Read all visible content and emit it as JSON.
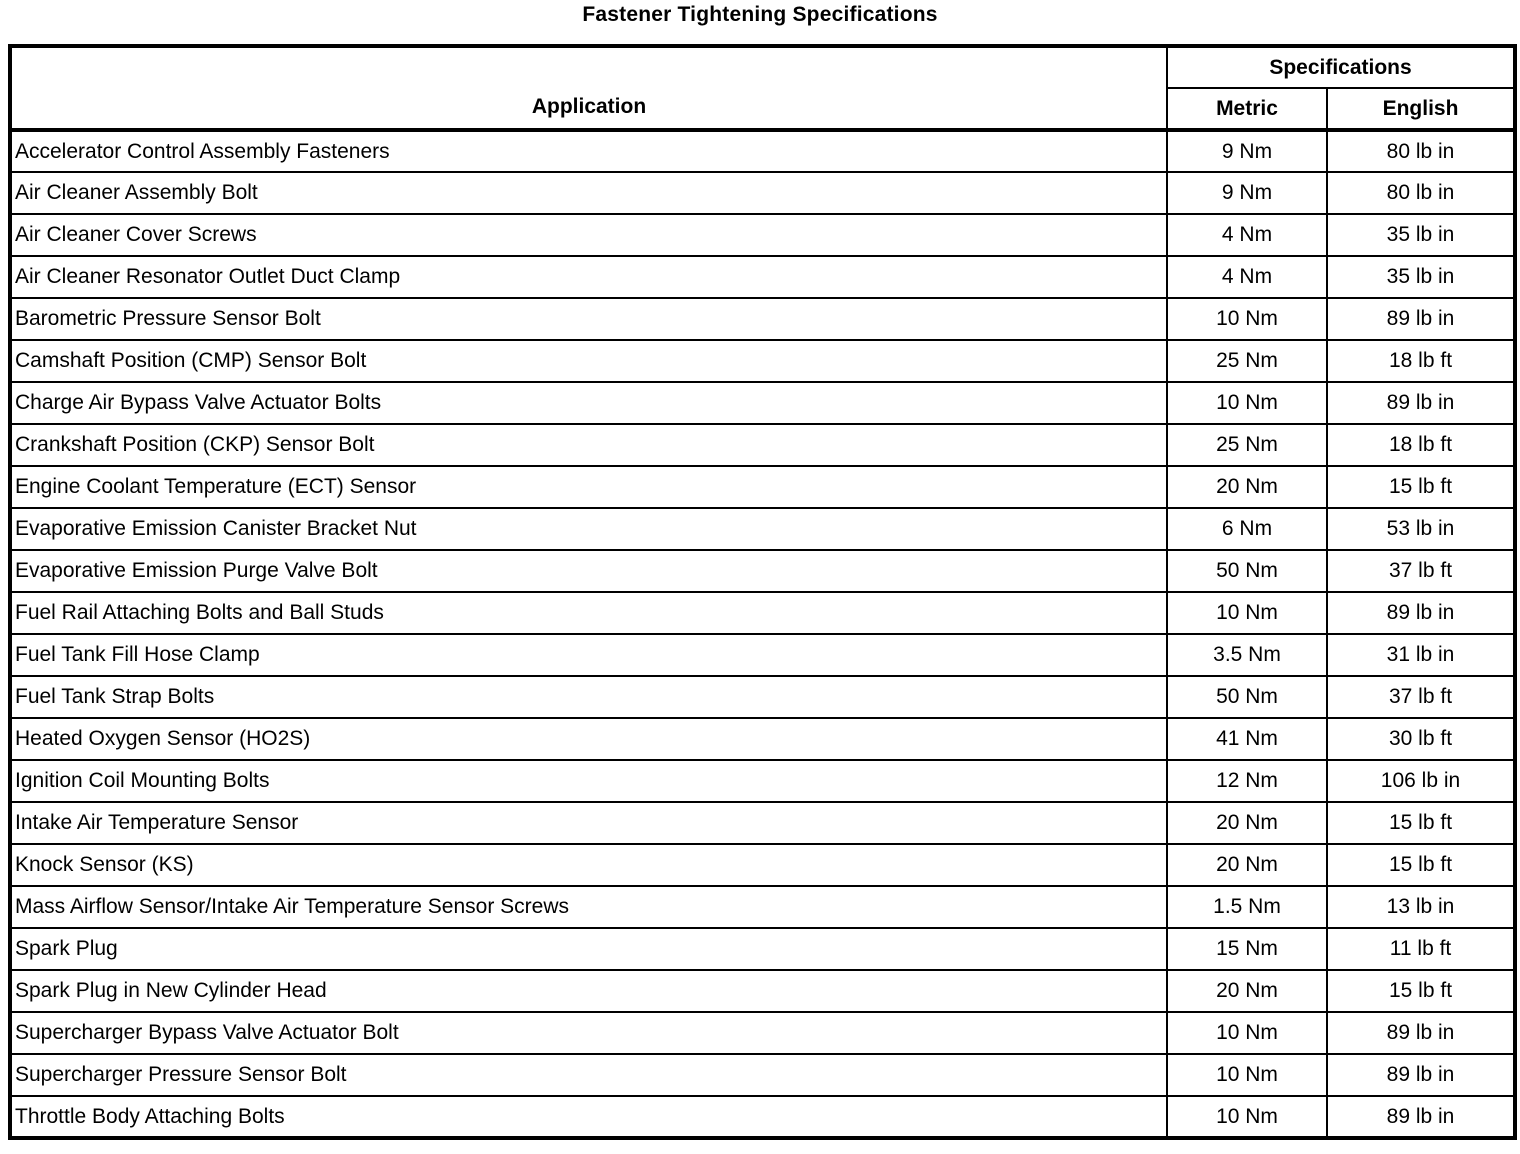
{
  "title": "Fastener Tightening Specifications",
  "table": {
    "column_headers": {
      "application": "Application",
      "specifications_group": "Specifications",
      "metric": "Metric",
      "english": "English"
    },
    "rows": [
      {
        "application": "Accelerator Control Assembly Fasteners",
        "metric": "9 Nm",
        "english": "80 lb in"
      },
      {
        "application": "Air Cleaner Assembly Bolt",
        "metric": "9 Nm",
        "english": "80 lb in"
      },
      {
        "application": "Air Cleaner Cover Screws",
        "metric": "4 Nm",
        "english": "35 lb in"
      },
      {
        "application": "Air Cleaner Resonator Outlet Duct Clamp",
        "metric": "4 Nm",
        "english": "35 lb in"
      },
      {
        "application": "Barometric Pressure Sensor Bolt",
        "metric": "10 Nm",
        "english": "89 lb in"
      },
      {
        "application": "Camshaft Position (CMP) Sensor Bolt",
        "metric": "25 Nm",
        "english": "18 lb ft"
      },
      {
        "application": "Charge Air Bypass Valve Actuator Bolts",
        "metric": "10 Nm",
        "english": "89 lb in"
      },
      {
        "application": "Crankshaft Position (CKP) Sensor Bolt",
        "metric": "25 Nm",
        "english": "18 lb ft"
      },
      {
        "application": "Engine Coolant Temperature (ECT) Sensor",
        "metric": "20 Nm",
        "english": "15 lb ft"
      },
      {
        "application": "Evaporative Emission Canister Bracket Nut",
        "metric": "6 Nm",
        "english": "53 lb in"
      },
      {
        "application": "Evaporative Emission Purge Valve Bolt",
        "metric": "50 Nm",
        "english": "37 lb ft"
      },
      {
        "application": "Fuel Rail Attaching Bolts and Ball Studs",
        "metric": "10 Nm",
        "english": "89 lb in"
      },
      {
        "application": "Fuel Tank Fill Hose Clamp",
        "metric": "3.5 Nm",
        "english": "31 lb in"
      },
      {
        "application": "Fuel Tank Strap Bolts",
        "metric": "50 Nm",
        "english": "37 lb ft"
      },
      {
        "application": "Heated Oxygen Sensor (HO2S)",
        "metric": "41 Nm",
        "english": "30 lb ft"
      },
      {
        "application": "Ignition Coil Mounting Bolts",
        "metric": "12 Nm",
        "english": "106 lb in"
      },
      {
        "application": "Intake Air Temperature Sensor",
        "metric": "20 Nm",
        "english": "15 lb ft"
      },
      {
        "application": "Knock Sensor (KS)",
        "metric": "20 Nm",
        "english": "15 lb ft"
      },
      {
        "application": "Mass Airflow Sensor/Intake Air Temperature Sensor Screws",
        "metric": "1.5 Nm",
        "english": "13 lb in"
      },
      {
        "application": "Spark Plug",
        "metric": "15 Nm",
        "english": "11 lb ft"
      },
      {
        "application": "Spark Plug in New Cylinder Head",
        "metric": "20 Nm",
        "english": "15 lb ft"
      },
      {
        "application": "Supercharger Bypass Valve Actuator Bolt",
        "metric": "10 Nm",
        "english": "89 lb in"
      },
      {
        "application": "Supercharger Pressure Sensor Bolt",
        "metric": "10 Nm",
        "english": "89 lb in"
      },
      {
        "application": "Throttle Body Attaching Bolts",
        "metric": "10 Nm",
        "english": "89 lb in"
      }
    ],
    "colors": {
      "border": "#000000",
      "text": "#000000",
      "background": "#ffffff"
    }
  }
}
